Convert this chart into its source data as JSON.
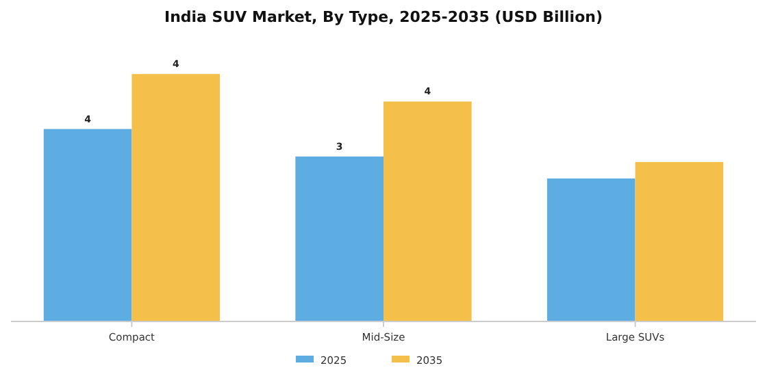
{
  "chart_data": {
    "type": "bar",
    "title": "India SUV Market, By Type, 2025-2035 (USD Billion)",
    "categories": [
      "Compact",
      "Mid-Size",
      "Large SUVs"
    ],
    "legend": "bottom",
    "series": [
      {
        "name": "2025",
        "color": "#5dade2",
        "values": [
          3.5,
          3.0,
          2.6
        ],
        "value_labels": [
          "4",
          "3",
          null
        ]
      },
      {
        "name": "2035",
        "color": "#f5c04a",
        "values": [
          4.5,
          4.0,
          2.9
        ],
        "value_labels": [
          "4",
          "4",
          null
        ]
      }
    ]
  }
}
